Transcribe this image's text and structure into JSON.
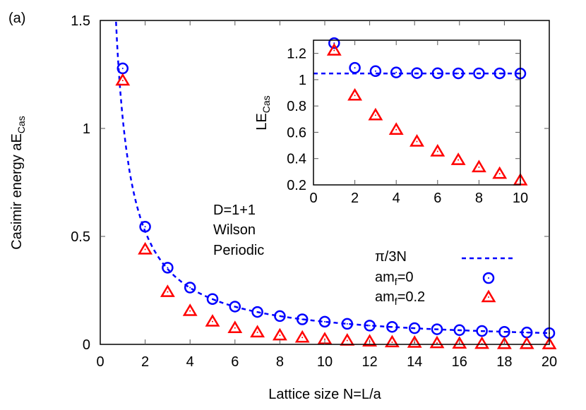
{
  "panel_label": "(a)",
  "chart_data": [
    {
      "type": "scatter",
      "xlabel": "Lattice size N=L/a",
      "ylabel_main": "Casimir energy aE",
      "ylabel_sub": "Cas",
      "xlim": [
        0,
        20
      ],
      "ylim": [
        0,
        1.5
      ],
      "xticks": [
        0,
        2,
        4,
        6,
        8,
        10,
        12,
        14,
        16,
        18,
        20
      ],
      "yticks": [
        0,
        0.5,
        1,
        1.5
      ],
      "ytick_labels": [
        "0",
        "0.5",
        "1",
        "1.5"
      ],
      "grid": false,
      "legend_placement": "center-right",
      "annotation": [
        "D=1+1",
        "Wilson",
        "Periodic"
      ],
      "curve": {
        "name": "π/3N",
        "formula": "pi/(3N)",
        "color": "#0000ff",
        "style": "dashed"
      },
      "series": [
        {
          "name_main": "am",
          "name_sub": "f",
          "name_tail": "=0",
          "marker": "circle",
          "color": "#0000ff",
          "x": [
            1,
            2,
            3,
            4,
            5,
            6,
            7,
            8,
            9,
            10,
            11,
            12,
            13,
            14,
            15,
            16,
            17,
            18,
            19,
            20
          ],
          "y": [
            1.278,
            0.545,
            0.355,
            0.263,
            0.21,
            0.175,
            0.15,
            0.131,
            0.116,
            0.105,
            0.095,
            0.087,
            0.081,
            0.075,
            0.07,
            0.066,
            0.062,
            0.058,
            0.055,
            0.052
          ]
        },
        {
          "name_main": "am",
          "name_sub": "f",
          "name_tail": "=0.2",
          "marker": "triangle",
          "color": "#ff0000",
          "x": [
            1,
            2,
            3,
            4,
            5,
            6,
            7,
            8,
            9,
            10,
            11,
            12,
            13,
            14,
            15,
            16,
            17,
            18,
            19,
            20
          ],
          "y": [
            1.222,
            0.44,
            0.243,
            0.155,
            0.106,
            0.076,
            0.056,
            0.042,
            0.032,
            0.024,
            0.018,
            0.014,
            0.01,
            0.008,
            0.006,
            0.004,
            0.003,
            0.002,
            0.002,
            0.001
          ]
        }
      ]
    },
    {
      "type": "scatter",
      "role": "inset",
      "ylabel_main": "LE",
      "ylabel_sub": "Cas",
      "xlim": [
        0,
        10
      ],
      "ylim": [
        0.2,
        1.3
      ],
      "xticks": [
        0,
        2,
        4,
        6,
        8,
        10
      ],
      "yticks": [
        0.2,
        0.4,
        0.6,
        0.8,
        1,
        1.2
      ],
      "ytick_labels": [
        "0.2",
        "0.4",
        "0.6",
        "0.8",
        "1",
        "1.2"
      ],
      "curve": {
        "formula": "pi/3",
        "value": 1.047,
        "color": "#0000ff",
        "style": "dashed"
      },
      "series": [
        {
          "marker": "circle",
          "color": "#0000ff",
          "x": [
            1,
            2,
            3,
            4,
            5,
            6,
            7,
            8,
            9,
            10
          ],
          "y": [
            1.278,
            1.09,
            1.065,
            1.055,
            1.05,
            1.049,
            1.048,
            1.048,
            1.048,
            1.047
          ]
        },
        {
          "marker": "triangle",
          "color": "#ff0000",
          "x": [
            1,
            2,
            3,
            4,
            5,
            6,
            7,
            8,
            9,
            10
          ],
          "y": [
            1.222,
            0.88,
            0.73,
            0.62,
            0.53,
            0.455,
            0.39,
            0.335,
            0.285,
            0.235
          ]
        }
      ]
    }
  ]
}
